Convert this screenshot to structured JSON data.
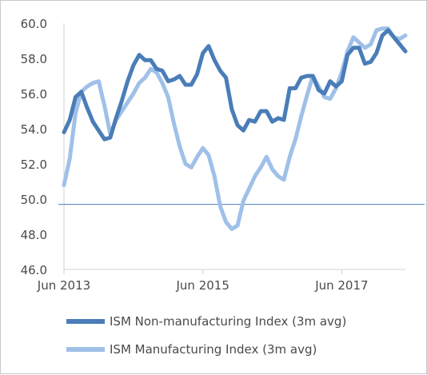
{
  "chart_data": {
    "type": "line",
    "title": "",
    "xlabel": "",
    "ylabel": "",
    "ylim": [
      46.0,
      60.0
    ],
    "y_ticks": [
      "60.0",
      "58.0",
      "56.0",
      "54.0",
      "52.0",
      "50.0",
      "48.0",
      "46.0"
    ],
    "x_ticks": [
      "Jun 2013",
      "Jun 2015",
      "Jun 2017"
    ],
    "x_tick_dates": [
      "2013-06",
      "2015-06",
      "2017-06"
    ],
    "x": [
      "2013-06",
      "2013-07",
      "2013-08",
      "2013-09",
      "2013-10",
      "2013-11",
      "2013-12",
      "2014-01",
      "2014-02",
      "2014-03",
      "2014-04",
      "2014-05",
      "2014-06",
      "2014-07",
      "2014-08",
      "2014-09",
      "2014-10",
      "2014-11",
      "2014-12",
      "2015-01",
      "2015-02",
      "2015-03",
      "2015-04",
      "2015-05",
      "2015-06",
      "2015-07",
      "2015-08",
      "2015-09",
      "2015-10",
      "2015-11",
      "2015-12",
      "2016-01",
      "2016-02",
      "2016-03",
      "2016-04",
      "2016-05",
      "2016-06",
      "2016-07",
      "2016-08",
      "2016-09",
      "2016-10",
      "2016-11",
      "2016-12",
      "2017-01",
      "2017-02",
      "2017-03",
      "2017-04",
      "2017-05",
      "2017-06",
      "2017-07",
      "2017-08",
      "2017-09",
      "2017-10",
      "2017-11",
      "2017-12",
      "2018-01",
      "2018-02",
      "2018-03",
      "2018-04",
      "2018-05"
    ],
    "reference_line": 49.7,
    "legend_position": "bottom",
    "grid": false,
    "series": [
      {
        "name": "ISM Non-manufacturing Index (3m avg)",
        "color": "#4a7db8",
        "values": [
          53.8,
          54.5,
          55.8,
          56.1,
          55.2,
          54.4,
          53.9,
          53.4,
          53.5,
          54.6,
          55.6,
          56.7,
          57.6,
          58.2,
          57.9,
          57.9,
          57.4,
          57.3,
          56.7,
          56.8,
          57.0,
          56.5,
          56.5,
          57.1,
          58.3,
          58.7,
          57.9,
          57.3,
          56.9,
          55.1,
          54.2,
          53.9,
          54.5,
          54.4,
          55.0,
          55.0,
          54.4,
          54.6,
          54.5,
          56.3,
          56.3,
          56.9,
          57.0,
          57.0,
          56.2,
          56.0,
          56.7,
          56.4,
          56.7,
          58.2,
          58.6,
          58.6,
          57.7,
          57.8,
          58.3,
          59.3,
          59.6,
          59.2,
          58.8,
          58.4
        ]
      },
      {
        "name": "ISM Manufacturing Index (3m avg)",
        "color": "#9fc0e8",
        "values": [
          50.8,
          52.3,
          54.9,
          56.1,
          56.4,
          56.6,
          56.7,
          55.3,
          53.7,
          54.5,
          55.0,
          55.5,
          56.0,
          56.6,
          56.9,
          57.4,
          57.2,
          56.6,
          55.8,
          54.3,
          53.0,
          52.0,
          51.8,
          52.4,
          52.9,
          52.5,
          51.3,
          49.6,
          48.7,
          48.3,
          48.5,
          49.9,
          50.6,
          51.3,
          51.8,
          52.4,
          51.7,
          51.3,
          51.1,
          52.4,
          53.4,
          54.7,
          55.9,
          57.0,
          56.4,
          55.8,
          55.7,
          56.3,
          57.2,
          58.4,
          59.2,
          58.9,
          58.6,
          58.8,
          59.6,
          59.7,
          59.7,
          59.2,
          59.1,
          59.3
        ]
      }
    ]
  }
}
